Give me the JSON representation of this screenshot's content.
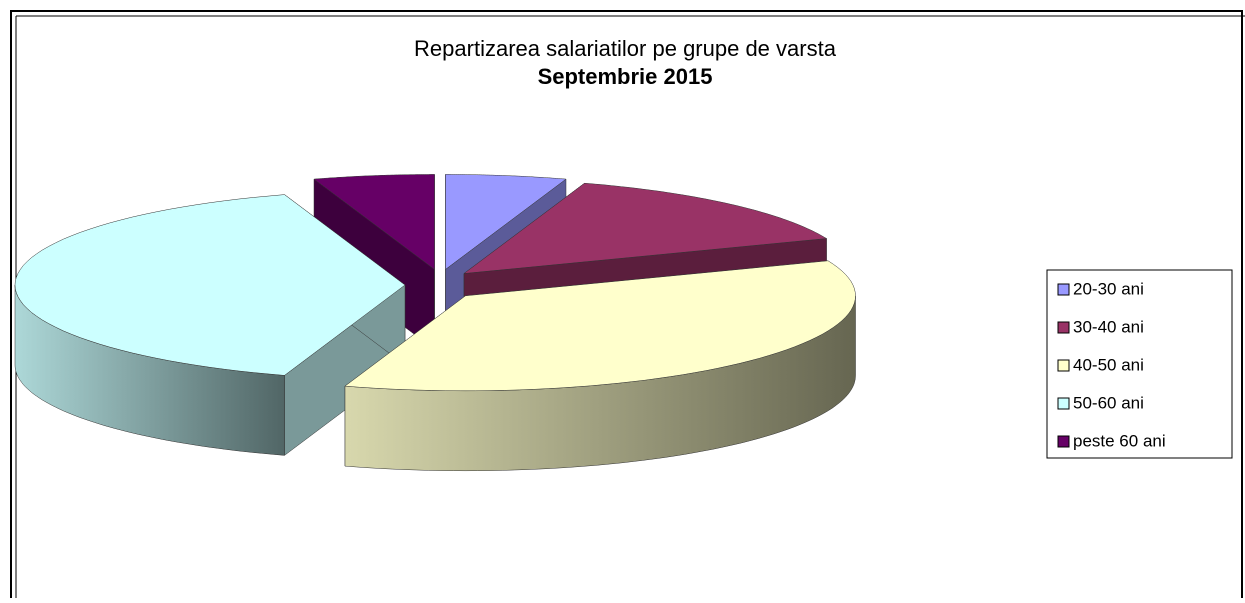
{
  "chart_data": {
    "type": "pie",
    "title": "Repartizarea salariatilor pe grupe de varsta",
    "subtitle": "Septembrie 2015",
    "categories": [
      "20-30 ani",
      "30-40 ani",
      "40-50 ani",
      "50-60 ani",
      "peste 60 ani"
    ],
    "values": [
      5,
      14,
      36,
      40,
      5
    ],
    "colors": [
      "#9999ff",
      "#993366",
      "#ffffcc",
      "#ccffff",
      "#660066"
    ],
    "legend": "right"
  }
}
